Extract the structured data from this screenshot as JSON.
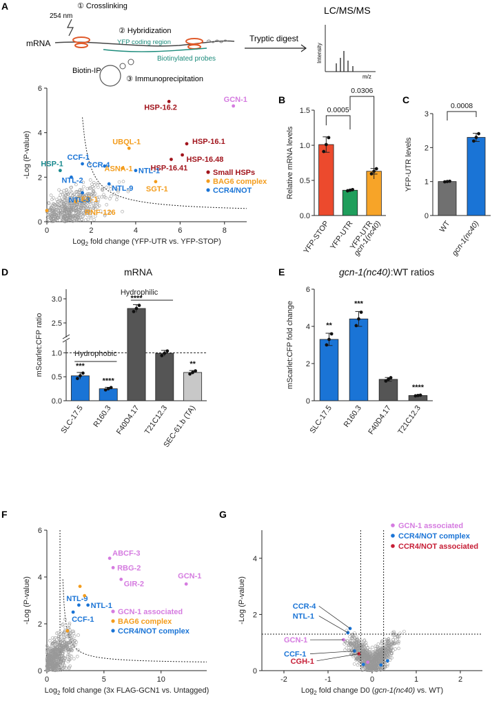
{
  "colors": {
    "small_hsp": "#a1141c",
    "bag6": "#f39c1c",
    "ccr4_not": "#1a74d6",
    "gcn1_assoc": "#d57be0",
    "ccr4_not_assoc": "#c61d35",
    "teal": "#1a8a8f",
    "bar_red": "#ec4a2d",
    "bar_green": "#1f9e5c",
    "bar_orange": "#f7a428",
    "bar_blue": "#1a74d6",
    "bar_gray": "#707070",
    "bar_dark": "#555555",
    "bar_light": "#c8c8c8"
  },
  "panelA": {
    "letter": "A",
    "step1": "① Crosslinking",
    "wavelength": "254 nm",
    "mrna": "mRNA",
    "step2": "② Hybridization",
    "yfp": "YFP coding region",
    "probes": "Biotinylated probes",
    "biotin_ip": "Biotin-IP",
    "step3": "③ Immunoprecipitation",
    "digest": "Tryptic digest",
    "lcms": "LC/MS/MS",
    "intensity": "Intensity",
    "mz": "m/z"
  },
  "chartA": {
    "type": "scatter",
    "xlabel_pre": "Log",
    "xlabel_sub": "2",
    "xlabel_post": " fold change (YFP-UTR vs. YFP-STOP)",
    "ylabel": "-Log (P-value)",
    "xlim": [
      0,
      9
    ],
    "ylim": [
      0,
      6
    ],
    "xticks": [
      "0",
      "2",
      "4",
      "6",
      "8"
    ],
    "yticks": [
      "0",
      "2",
      "4",
      "6"
    ],
    "legend": [
      "Small HSPs",
      "BAG6 complex",
      "CCR4/NOT"
    ],
    "labels": [
      {
        "text": "GCN-1",
        "x": 8.4,
        "y": 5.2,
        "group": "gcn1"
      },
      {
        "text": "HSP-16.2",
        "x": 5.5,
        "y": 5.4,
        "group": "hsp"
      },
      {
        "text": "HSP-16.1",
        "x": 6.3,
        "y": 3.5,
        "group": "hsp"
      },
      {
        "text": "HSP-16.48",
        "x": 6.1,
        "y": 3.0,
        "group": "hsp"
      },
      {
        "text": "HSP-16.41",
        "x": 5.6,
        "y": 2.8,
        "group": "hsp"
      },
      {
        "text": "UBQL-1",
        "x": 3.7,
        "y": 3.3,
        "group": "bag6"
      },
      {
        "text": "ASNA-1",
        "x": 3.4,
        "y": 2.4,
        "group": "bag6"
      },
      {
        "text": "SGT-1",
        "x": 4.9,
        "y": 1.8,
        "group": "bag6"
      },
      {
        "text": "CEE-1",
        "x": 1.3,
        "y": 0.9,
        "group": "bag6"
      },
      {
        "text": "RNF-126",
        "x": 0.0,
        "y": 0.5,
        "group": "bag6"
      },
      {
        "text": "HSP-1",
        "x": 0.6,
        "y": 2.3,
        "group": "teal"
      },
      {
        "text": "CCF-1",
        "x": 1.6,
        "y": 2.6,
        "group": "ccr4"
      },
      {
        "text": "NTL-2",
        "x": 1.1,
        "y": 2.0,
        "group": "ccr4"
      },
      {
        "text": "CCR-4",
        "x": 2.6,
        "y": 2.5,
        "group": "ccr4"
      },
      {
        "text": "NTL-1",
        "x": 4.0,
        "y": 2.3,
        "group": "ccr4"
      },
      {
        "text": "NTL-9",
        "x": 2.8,
        "y": 1.7,
        "group": "ccr4"
      },
      {
        "text": "NTL-3",
        "x": 1.6,
        "y": 1.3,
        "group": "ccr4"
      }
    ]
  },
  "chartB": {
    "type": "bar",
    "letter": "B",
    "ylabel": "Relative mRNA levels",
    "yticks": [
      "0.0",
      "0.5",
      "1.0",
      "1.5"
    ],
    "ylim": [
      0,
      1.5
    ],
    "categories": [
      "YFP-STOP",
      "YFP-UTR",
      "YFP-UTR"
    ],
    "cat3_sub": "gcn-1(nc40)",
    "values": [
      1.01,
      0.36,
      0.63
    ],
    "errors": [
      0.11,
      0.01,
      0.04
    ],
    "pvals": [
      "0.0005",
      "0.0306"
    ]
  },
  "chartC": {
    "type": "bar",
    "letter": "C",
    "ylabel": "YFP-UTR levels",
    "yticks": [
      "0",
      "1",
      "2",
      "3"
    ],
    "ylim": [
      0,
      3
    ],
    "categories": [
      "WT",
      "gcn-1(nc40)"
    ],
    "values": [
      1.0,
      2.3
    ],
    "errors": [
      0.01,
      0.12
    ],
    "pval": "0.0008"
  },
  "chartD": {
    "type": "bar",
    "letter": "D",
    "title": "mRNA",
    "ylabel": "mScarlet:CFP ratio",
    "yticks_low": [
      "0.0",
      "0.5",
      "1.0"
    ],
    "yticks_high": [
      "2.5",
      "3.0"
    ],
    "categories": [
      "SLC-17.5",
      "R160.3",
      "F40D4.17",
      "T21C12.3",
      "SEC-61.b (TA)"
    ],
    "values": [
      0.52,
      0.25,
      2.8,
      0.99,
      0.59
    ],
    "errors": [
      0.07,
      0.03,
      0.08,
      0.06,
      0.04
    ],
    "stars": [
      "***",
      "****",
      "****",
      "",
      "**"
    ],
    "hydrophobic": "Hydrophobic",
    "hydrophilic": "Hydrophilic"
  },
  "chartE": {
    "type": "bar",
    "letter": "E",
    "title_it": "gcn-1(nc40)",
    "title_rest": ":WT ratios",
    "ylabel": "mScarlet:CFP fold change",
    "yticks": [
      "0",
      "2",
      "4",
      "6"
    ],
    "ylim": [
      0,
      6
    ],
    "categories": [
      "SLC-17.5",
      "R160.3",
      "F40D4.17",
      "T21C12.3"
    ],
    "values": [
      3.3,
      4.4,
      1.15,
      0.28
    ],
    "errors": [
      0.33,
      0.4,
      0.1,
      0.02
    ],
    "stars": [
      "**",
      "***",
      "",
      "****"
    ]
  },
  "chartF": {
    "type": "scatter",
    "letter": "F",
    "xlabel_pre": "Log",
    "xlabel_sub": "2",
    "xlabel_post": " fold change (3x FLAG-GCN1 vs. Untagged)",
    "ylabel": "-Log (P-value)",
    "xlim": [
      0,
      14
    ],
    "ylim": [
      0,
      6
    ],
    "xticks": [
      "0",
      "5",
      "10"
    ],
    "yticks": [
      "0",
      "2",
      "4",
      "6"
    ],
    "legend": [
      "GCN-1 associated",
      "BAG6 complex",
      "CCR4/NOT complex"
    ],
    "labels": [
      {
        "text": "ABCF-3",
        "x": 5.5,
        "y": 4.8,
        "group": "gcn1"
      },
      {
        "text": "RBG-2",
        "x": 5.8,
        "y": 4.4,
        "group": "gcn1"
      },
      {
        "text": "GIR-2",
        "x": 6.5,
        "y": 3.9,
        "group": "gcn1"
      },
      {
        "text": "GCN-1",
        "x": 12.2,
        "y": 3.7,
        "group": "gcn1"
      },
      {
        "text": "NTL-9",
        "x": 2.8,
        "y": 2.8,
        "group": "ccr4"
      },
      {
        "text": "NTL-1",
        "x": 3.6,
        "y": 2.8,
        "group": "ccr4"
      },
      {
        "text": "CCF-1",
        "x": 2.3,
        "y": 2.5,
        "group": "ccr4"
      }
    ]
  },
  "chartG": {
    "type": "scatter",
    "letter": "G",
    "xlabel_pre": "Log",
    "xlabel_sub": "2",
    "xlabel_mid": " fold change D0 (",
    "xlabel_it": "gcn-1(nc40)",
    "xlabel_post": " vs. WT)",
    "ylabel": "-Log (P-value)",
    "xlim": [
      -2.5,
      2.5
    ],
    "ylim": [
      0,
      5
    ],
    "xticks": [
      "-2",
      "-1",
      "0",
      "1",
      "2"
    ],
    "yticks": [
      "0",
      "2",
      "4"
    ],
    "legend": [
      "GCN-1 associated",
      "CCR4/NOT complex",
      "CCR4/NOT associated"
    ],
    "labels": [
      {
        "text": "CCR-4",
        "x": -0.5,
        "y": 1.5,
        "group": "ccr4"
      },
      {
        "text": "NTL-1",
        "x": -0.55,
        "y": 1.35,
        "group": "ccr4"
      },
      {
        "text": "GCN-1",
        "x": -0.65,
        "y": 1.1,
        "group": "gcn1"
      },
      {
        "text": "CCF-1",
        "x": -0.4,
        "y": 0.7,
        "group": "ccr4"
      },
      {
        "text": "CGH-1",
        "x": -0.3,
        "y": 0.6,
        "group": "assoc"
      }
    ]
  }
}
